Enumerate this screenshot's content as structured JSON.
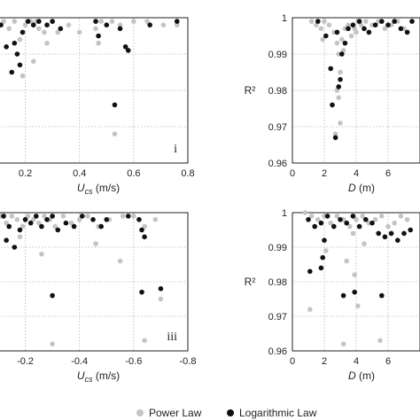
{
  "colors": {
    "power": "#c4c4c4",
    "log": "#111111",
    "grid": "#b5b5b5",
    "frame": "#222222"
  },
  "legend": {
    "power_label": "Power Law",
    "log_label": "Logarithmic Law",
    "placement": "bottom-center"
  },
  "chart_data": [
    {
      "type": "scatter",
      "panel_label": "i",
      "xlabel": "U_cs (m/s)",
      "xlim": [
        0.1,
        0.8
      ],
      "ylim": [
        0.96,
        1.0
      ],
      "grid": true,
      "x_ticks": [
        "0.2",
        "0.4",
        "0.6",
        "0.8"
      ],
      "y_ticks": [],
      "series": [
        {
          "name": "Power Law",
          "color": "#c4c4c4",
          "points": [
            [
              0.12,
              0.999
            ],
            [
              0.14,
              0.997
            ],
            [
              0.16,
              0.999
            ],
            [
              0.18,
              0.994
            ],
            [
              0.2,
              0.998
            ],
            [
              0.22,
              0.999
            ],
            [
              0.24,
              0.999
            ],
            [
              0.25,
              0.997
            ],
            [
              0.27,
              0.996
            ],
            [
              0.3,
              0.999
            ],
            [
              0.32,
              0.996
            ],
            [
              0.36,
              0.998
            ],
            [
              0.4,
              0.996
            ],
            [
              0.46,
              0.997
            ],
            [
              0.48,
              0.999
            ],
            [
              0.52,
              0.999
            ],
            [
              0.55,
              0.998
            ],
            [
              0.6,
              0.999
            ],
            [
              0.65,
              0.999
            ],
            [
              0.71,
              0.998
            ],
            [
              0.76,
              0.998
            ],
            [
              0.47,
              0.993
            ],
            [
              0.23,
              0.988
            ],
            [
              0.28,
              0.993
            ],
            [
              0.19,
              0.984
            ],
            [
              0.53,
              0.968
            ]
          ]
        },
        {
          "name": "Logarithmic Law",
          "color": "#111111",
          "points": [
            [
              0.11,
              0.998
            ],
            [
              0.13,
              0.992
            ],
            [
              0.15,
              0.985
            ],
            [
              0.17,
              0.99
            ],
            [
              0.19,
              0.996
            ],
            [
              0.21,
              0.999
            ],
            [
              0.23,
              0.998
            ],
            [
              0.25,
              0.999
            ],
            [
              0.28,
              0.998
            ],
            [
              0.3,
              0.999
            ],
            [
              0.33,
              0.997
            ],
            [
              0.46,
              0.999
            ],
            [
              0.47,
              0.995
            ],
            [
              0.5,
              0.998
            ],
            [
              0.55,
              0.997
            ],
            [
              0.57,
              0.992
            ],
            [
              0.58,
              0.991
            ],
            [
              0.66,
              0.998
            ],
            [
              0.76,
              0.999
            ],
            [
              0.16,
              0.993
            ],
            [
              0.18,
              0.987
            ],
            [
              0.53,
              0.976
            ]
          ]
        }
      ]
    },
    {
      "type": "scatter",
      "panel_label": "",
      "xlabel": "D (m)",
      "ylabel": "R²",
      "xlim": [
        0,
        8
      ],
      "ylim": [
        0.96,
        1.0
      ],
      "grid": true,
      "x_ticks": [
        "0",
        "2",
        "4",
        "6"
      ],
      "y_ticks": [
        "0.96",
        "0.97",
        "0.98",
        "0.99",
        "1"
      ],
      "series": [
        {
          "name": "Power Law",
          "color": "#c4c4c4",
          "points": [
            [
              1.2,
              0.999
            ],
            [
              1.5,
              0.998
            ],
            [
              1.8,
              0.997
            ],
            [
              2.0,
              0.999
            ],
            [
              2.3,
              0.998
            ],
            [
              2.6,
              0.996
            ],
            [
              2.8,
              0.993
            ],
            [
              2.9,
              0.99
            ],
            [
              3.0,
              0.985
            ],
            [
              3.1,
              0.994
            ],
            [
              3.2,
              0.991
            ],
            [
              3.3,
              0.997
            ],
            [
              3.5,
              0.998
            ],
            [
              3.7,
              0.995
            ],
            [
              3.9,
              0.997
            ],
            [
              4.1,
              0.999
            ],
            [
              4.3,
              0.998
            ],
            [
              4.6,
              0.999
            ],
            [
              5.0,
              0.998
            ],
            [
              5.4,
              0.999
            ],
            [
              5.8,
              0.997
            ],
            [
              6.2,
              0.998
            ],
            [
              6.6,
              0.999
            ],
            [
              7.0,
              0.997
            ],
            [
              1.9,
              0.994
            ],
            [
              2.7,
              0.968
            ],
            [
              2.8,
              0.98
            ],
            [
              4.0,
              0.996
            ],
            [
              2.9,
              0.978
            ],
            [
              3.0,
              0.971
            ]
          ]
        },
        {
          "name": "Logarithmic Law",
          "color": "#111111",
          "points": [
            [
              1.6,
              0.999
            ],
            [
              2.1,
              0.995
            ],
            [
              2.4,
              0.986
            ],
            [
              2.5,
              0.976
            ],
            [
              2.7,
              0.967
            ],
            [
              2.8,
              0.996
            ],
            [
              2.9,
              0.981
            ],
            [
              3.0,
              0.983
            ],
            [
              3.1,
              0.99
            ],
            [
              3.3,
              0.993
            ],
            [
              3.5,
              0.997
            ],
            [
              3.8,
              0.998
            ],
            [
              4.2,
              0.999
            ],
            [
              4.5,
              0.997
            ],
            [
              4.8,
              0.996
            ],
            [
              5.2,
              0.998
            ],
            [
              5.6,
              0.999
            ],
            [
              6.0,
              0.998
            ],
            [
              6.4,
              0.999
            ],
            [
              6.8,
              0.997
            ],
            [
              7.2,
              0.996
            ],
            [
              7.5,
              0.999
            ]
          ]
        }
      ]
    },
    {
      "type": "scatter",
      "panel_label": "iii",
      "xlabel": "U_cs (m/s)",
      "xlim": [
        -0.1,
        -0.8
      ],
      "ylim": [
        0.96,
        1.0
      ],
      "grid": true,
      "x_ticks": [
        "-0.2",
        "-0.4",
        "-0.6",
        "-0.8"
      ],
      "y_ticks": [],
      "series": [
        {
          "name": "Power Law",
          "color": "#c4c4c4",
          "points": [
            [
              -0.11,
              0.999
            ],
            [
              -0.13,
              0.997
            ],
            [
              -0.15,
              0.999
            ],
            [
              -0.17,
              0.998
            ],
            [
              -0.19,
              0.996
            ],
            [
              -0.21,
              0.999
            ],
            [
              -0.23,
              0.998
            ],
            [
              -0.25,
              0.997
            ],
            [
              -0.27,
              0.999
            ],
            [
              -0.29,
              0.998
            ],
            [
              -0.31,
              0.996
            ],
            [
              -0.34,
              0.999
            ],
            [
              -0.37,
              0.997
            ],
            [
              -0.4,
              0.998
            ],
            [
              -0.43,
              0.999
            ],
            [
              -0.47,
              0.996
            ],
            [
              -0.51,
              0.998
            ],
            [
              -0.56,
              0.999
            ],
            [
              -0.6,
              0.999
            ],
            [
              -0.64,
              0.996
            ],
            [
              -0.68,
              0.998
            ],
            [
              -0.18,
              0.993
            ],
            [
              -0.26,
              0.988
            ],
            [
              -0.3,
              0.962
            ],
            [
              -0.46,
              0.991
            ],
            [
              -0.55,
              0.986
            ],
            [
              -0.63,
              0.977
            ],
            [
              -0.7,
              0.975
            ],
            [
              -0.64,
              0.963
            ]
          ]
        },
        {
          "name": "Logarithmic Law",
          "color": "#111111",
          "points": [
            [
              -0.12,
              0.999
            ],
            [
              -0.14,
              0.996
            ],
            [
              -0.16,
              0.99
            ],
            [
              -0.18,
              0.995
            ],
            [
              -0.2,
              0.998
            ],
            [
              -0.22,
              0.997
            ],
            [
              -0.24,
              0.999
            ],
            [
              -0.26,
              0.996
            ],
            [
              -0.28,
              0.998
            ],
            [
              -0.3,
              0.999
            ],
            [
              -0.32,
              0.995
            ],
            [
              -0.35,
              0.997
            ],
            [
              -0.38,
              0.996
            ],
            [
              -0.41,
              0.999
            ],
            [
              -0.45,
              0.998
            ],
            [
              -0.48,
              0.996
            ],
            [
              -0.5,
              0.998
            ],
            [
              -0.58,
              0.999
            ],
            [
              -0.62,
              0.998
            ],
            [
              -0.63,
              0.995
            ],
            [
              -0.64,
              0.993
            ],
            [
              -0.3,
              0.976
            ],
            [
              -0.63,
              0.977
            ],
            [
              -0.7,
              0.978
            ],
            [
              -0.13,
              0.992
            ]
          ]
        }
      ]
    },
    {
      "type": "scatter",
      "panel_label": "",
      "xlabel": "D (m)",
      "ylabel": "R²",
      "xlim": [
        0,
        8
      ],
      "ylim": [
        0.96,
        1.0
      ],
      "grid": true,
      "x_ticks": [
        "0",
        "2",
        "4",
        "6"
      ],
      "y_ticks": [
        "0.96",
        "0.97",
        "0.98",
        "0.99",
        "1"
      ],
      "series": [
        {
          "name": "Power Law",
          "color": "#c4c4c4",
          "points": [
            [
              0.8,
              1.0
            ],
            [
              1.2,
              0.999
            ],
            [
              1.6,
              0.998
            ],
            [
              2.0,
              0.999
            ],
            [
              2.4,
              0.997
            ],
            [
              2.8,
              0.999
            ],
            [
              3.2,
              0.998
            ],
            [
              3.6,
              0.996
            ],
            [
              3.8,
              0.994
            ],
            [
              4.0,
              0.998
            ],
            [
              4.4,
              0.999
            ],
            [
              4.8,
              0.997
            ],
            [
              5.2,
              0.998
            ],
            [
              5.6,
              0.999
            ],
            [
              6.0,
              0.996
            ],
            [
              6.4,
              0.997
            ],
            [
              6.8,
              0.999
            ],
            [
              7.2,
              0.998
            ],
            [
              1.1,
              0.972
            ],
            [
              3.2,
              0.962
            ],
            [
              3.9,
              0.982
            ],
            [
              4.1,
              0.973
            ],
            [
              5.5,
              0.963
            ],
            [
              2.1,
              0.989
            ],
            [
              3.4,
              0.986
            ],
            [
              4.5,
              0.991
            ]
          ]
        },
        {
          "name": "Logarithmic Law",
          "color": "#111111",
          "points": [
            [
              1.0,
              0.998
            ],
            [
              1.4,
              0.996
            ],
            [
              1.8,
              0.997
            ],
            [
              2.2,
              0.999
            ],
            [
              2.6,
              0.996
            ],
            [
              3.0,
              0.998
            ],
            [
              3.4,
              0.997
            ],
            [
              3.8,
              0.999
            ],
            [
              4.2,
              0.996
            ],
            [
              4.6,
              0.998
            ],
            [
              5.0,
              0.997
            ],
            [
              5.4,
              0.994
            ],
            [
              5.8,
              0.993
            ],
            [
              6.2,
              0.994
            ],
            [
              6.6,
              0.992
            ],
            [
              7.0,
              0.994
            ],
            [
              7.4,
              0.995
            ],
            [
              1.1,
              0.983
            ],
            [
              1.8,
              0.984
            ],
            [
              3.2,
              0.976
            ],
            [
              3.9,
              0.977
            ],
            [
              5.6,
              0.976
            ],
            [
              1.9,
              0.987
            ],
            [
              2.0,
              0.992
            ]
          ]
        }
      ]
    }
  ]
}
